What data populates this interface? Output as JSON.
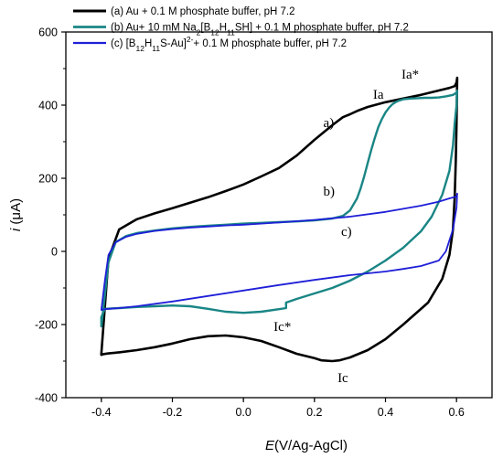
{
  "chart_data": {
    "type": "line",
    "xlabel_var": "E",
    "xlabel_unit": "(V/Ag-AgCl)",
    "ylabel_var": "i",
    "ylabel_unit": " (μA)",
    "xlim": [
      -0.5,
      0.7
    ],
    "ylim": [
      -400,
      600
    ],
    "x_ticks": [
      -0.4,
      -0.2,
      0.0,
      0.2,
      0.4,
      0.6
    ],
    "x_tick_labels": [
      "-0.4",
      "-0.2",
      "0.0",
      "0.2",
      "0.4",
      "0.6"
    ],
    "y_ticks": [
      -400,
      -200,
      0,
      200,
      400,
      600
    ],
    "y_tick_labels": [
      "-400",
      "-200",
      "0",
      "200",
      "400",
      "600"
    ],
    "legend_position": "top",
    "series": [
      {
        "legend_parts": [
          {
            "t": "(a) Au + 0.1 M phosphate buffer, pH 7.2"
          }
        ],
        "color": "#000000",
        "width": 2.6,
        "x": [
          -0.4,
          -0.39,
          -0.38,
          -0.35,
          -0.3,
          -0.25,
          -0.2,
          -0.15,
          -0.1,
          -0.05,
          0.0,
          0.05,
          0.1,
          0.15,
          0.2,
          0.25,
          0.28,
          0.3,
          0.32,
          0.35,
          0.4,
          0.45,
          0.5,
          0.55,
          0.58,
          0.595,
          0.6,
          0.602,
          0.6,
          0.598,
          0.595,
          0.59,
          0.58,
          0.56,
          0.52,
          0.45,
          0.4,
          0.35,
          0.3,
          0.27,
          0.25,
          0.22,
          0.2,
          0.15,
          0.1,
          0.05,
          0.0,
          -0.05,
          -0.1,
          -0.15,
          -0.2,
          -0.25,
          -0.3,
          -0.35,
          -0.38,
          -0.395,
          -0.4,
          -0.4
        ],
        "y": [
          -280,
          -150,
          -20,
          60,
          88,
          104,
          118,
          133,
          148,
          165,
          183,
          205,
          228,
          262,
          305,
          345,
          367,
          375,
          384,
          395,
          408,
          418,
          428,
          440,
          447,
          452,
          462,
          475,
          350,
          250,
          150,
          60,
          -10,
          -75,
          -140,
          -200,
          -240,
          -270,
          -290,
          -298,
          -300,
          -298,
          -292,
          -280,
          -262,
          -245,
          -235,
          -230,
          -232,
          -240,
          -252,
          -262,
          -270,
          -276,
          -279,
          -281,
          -283,
          -280
        ],
        "fill_to_axis": false
      },
      {
        "legend_parts": [
          {
            "t": "(b) Au+ 10 mM Na"
          },
          {
            "t": "2",
            "sub": true
          },
          {
            "t": "[B"
          },
          {
            "t": "12",
            "sub": true
          },
          {
            "t": "H"
          },
          {
            "t": "11",
            "sub": true
          },
          {
            "t": "SH] + 0.1 M phosphate buffer, pH 7.2"
          }
        ],
        "color": "#1a8585",
        "width": 2.4,
        "x": [
          -0.4,
          -0.39,
          -0.38,
          -0.36,
          -0.33,
          -0.3,
          -0.25,
          -0.2,
          -0.15,
          -0.1,
          -0.05,
          0.0,
          0.05,
          0.1,
          0.15,
          0.2,
          0.25,
          0.28,
          0.3,
          0.32,
          0.33,
          0.34,
          0.35,
          0.36,
          0.37,
          0.38,
          0.39,
          0.4,
          0.41,
          0.42,
          0.43,
          0.44,
          0.45,
          0.47,
          0.49,
          0.51,
          0.53,
          0.55,
          0.57,
          0.59,
          0.6,
          0.602,
          0.6,
          0.595,
          0.59,
          0.58,
          0.56,
          0.53,
          0.5,
          0.45,
          0.4,
          0.35,
          0.3,
          0.25,
          0.2,
          0.15,
          0.12,
          0.12,
          0.1,
          0.05,
          0.0,
          -0.05,
          -0.1,
          -0.15,
          -0.2,
          -0.25,
          -0.3,
          -0.35,
          -0.39,
          -0.4,
          -0.4
        ],
        "y": [
          -205,
          -120,
          -30,
          25,
          42,
          50,
          57,
          63,
          67,
          70,
          73,
          76,
          78,
          80,
          82,
          85,
          90,
          97,
          112,
          145,
          172,
          205,
          242,
          278,
          310,
          340,
          362,
          380,
          393,
          403,
          409,
          413,
          416,
          418,
          419,
          420,
          420,
          421,
          424,
          428,
          434,
          440,
          400,
          350,
          290,
          220,
          155,
          95,
          55,
          10,
          -25,
          -55,
          -80,
          -100,
          -115,
          -130,
          -140,
          -155,
          -158,
          -165,
          -168,
          -165,
          -157,
          -150,
          -148,
          -150,
          -152,
          -155,
          -157,
          -180,
          -205
        ],
        "fill_to_axis": false
      },
      {
        "legend_parts": [
          {
            "t": "(c) [B"
          },
          {
            "t": "12",
            "sub": true
          },
          {
            "t": "H"
          },
          {
            "t": "11",
            "sub": true
          },
          {
            "t": "S-Au]"
          },
          {
            "t": "2-",
            "sup": true
          },
          {
            "t": "+ 0.1 M phosphate buffer, pH 7.2"
          }
        ],
        "color": "#1f1fd8",
        "width": 1.8,
        "x": [
          -0.4,
          -0.39,
          -0.38,
          -0.36,
          -0.33,
          -0.3,
          -0.25,
          -0.2,
          -0.15,
          -0.1,
          -0.05,
          0.0,
          0.05,
          0.1,
          0.2,
          0.3,
          0.4,
          0.5,
          0.55,
          0.58,
          0.6,
          0.602,
          0.6,
          0.59,
          0.57,
          0.55,
          0.5,
          0.45,
          0.4,
          0.3,
          0.2,
          0.1,
          0.0,
          -0.1,
          -0.2,
          -0.3,
          -0.35,
          -0.39,
          -0.4,
          -0.4
        ],
        "y": [
          -160,
          -80,
          -10,
          25,
          40,
          48,
          56,
          61,
          65,
          68,
          71,
          73,
          76,
          79,
          86,
          95,
          108,
          125,
          136,
          145,
          150,
          158,
          120,
          60,
          0,
          -25,
          -40,
          -48,
          -55,
          -65,
          -78,
          -92,
          -107,
          -122,
          -137,
          -150,
          -155,
          -158,
          -160,
          -160
        ],
        "fill_to_axis": false
      }
    ],
    "annotations": [
      {
        "text": "Ia*",
        "x": 0.445,
        "y": 472
      },
      {
        "text": "Ia",
        "x": 0.365,
        "y": 418
      },
      {
        "text": "a)",
        "x": 0.225,
        "y": 340
      },
      {
        "text": "b)",
        "x": 0.225,
        "y": 152
      },
      {
        "text": "c)",
        "x": 0.275,
        "y": 42
      },
      {
        "text": "Ic*",
        "x": 0.085,
        "y": -218
      },
      {
        "text": "Ic",
        "x": 0.265,
        "y": -358
      }
    ]
  }
}
